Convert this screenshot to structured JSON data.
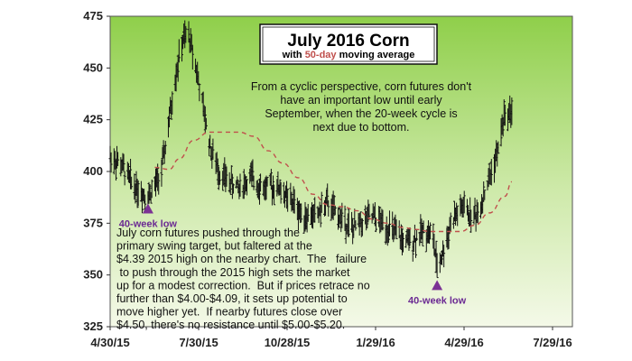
{
  "chart_data": {
    "type": "ohlc",
    "title": "July 2016 Corn",
    "subtitle_prefix": "with ",
    "subtitle_highlight": "50-day",
    "subtitle_suffix": " moving average",
    "y_ticks": [
      "475",
      "450",
      "425",
      "400",
      "375",
      "350",
      "325"
    ],
    "x_ticks": [
      "4/30/15",
      "7/30/15",
      "10/28/15",
      "1/29/16",
      "4/29/16",
      "7/29/16"
    ],
    "ylim": [
      325,
      475
    ],
    "price_path": [
      [
        "2015-04-30",
        407
      ],
      [
        "2015-05-10",
        404
      ],
      [
        "2015-05-22",
        395
      ],
      [
        "2015-06-01",
        390
      ],
      [
        "2015-06-08",
        388
      ],
      [
        "2015-06-15",
        393
      ],
      [
        "2015-06-22",
        400
      ],
      [
        "2015-06-30",
        425
      ],
      [
        "2015-07-07",
        448
      ],
      [
        "2015-07-14",
        463
      ],
      [
        "2015-07-20",
        466
      ],
      [
        "2015-07-27",
        452
      ],
      [
        "2015-08-04",
        430
      ],
      [
        "2015-08-12",
        410
      ],
      [
        "2015-08-20",
        400
      ],
      [
        "2015-08-31",
        395
      ],
      [
        "2015-09-10",
        392
      ],
      [
        "2015-09-22",
        397
      ],
      [
        "2015-10-05",
        392
      ],
      [
        "2015-10-15",
        393
      ],
      [
        "2015-10-22",
        392
      ],
      [
        "2015-10-29",
        387
      ],
      [
        "2015-11-05",
        385
      ],
      [
        "2015-11-12",
        380
      ],
      [
        "2015-11-20",
        378
      ],
      [
        "2015-12-01",
        380
      ],
      [
        "2015-12-10",
        385
      ],
      [
        "2015-12-18",
        380
      ],
      [
        "2015-12-28",
        376
      ],
      [
        "2016-01-05",
        372
      ],
      [
        "2016-01-15",
        376
      ],
      [
        "2016-01-25",
        378
      ],
      [
        "2016-02-05",
        375
      ],
      [
        "2016-02-18",
        370
      ],
      [
        "2016-02-29",
        365
      ],
      [
        "2016-03-10",
        368
      ],
      [
        "2016-03-20",
        372
      ],
      [
        "2016-03-28",
        368
      ],
      [
        "2016-04-01",
        354
      ],
      [
        "2016-04-08",
        362
      ],
      [
        "2016-04-15",
        375
      ],
      [
        "2016-04-22",
        380
      ],
      [
        "2016-04-29",
        383
      ],
      [
        "2016-05-06",
        378
      ],
      [
        "2016-05-13",
        380
      ],
      [
        "2016-05-20",
        390
      ],
      [
        "2016-05-27",
        400
      ],
      [
        "2016-06-03",
        410
      ],
      [
        "2016-06-08",
        425
      ],
      [
        "2016-06-13",
        428
      ],
      [
        "2016-06-17",
        430
      ]
    ],
    "moving_average": [
      [
        "2015-06-15",
        402
      ],
      [
        "2015-06-30",
        401
      ],
      [
        "2015-07-10",
        406
      ],
      [
        "2015-07-25",
        415
      ],
      [
        "2015-08-10",
        419
      ],
      [
        "2015-08-25",
        419
      ],
      [
        "2015-09-10",
        419
      ],
      [
        "2015-09-25",
        417
      ],
      [
        "2015-10-10",
        410
      ],
      [
        "2015-10-25",
        404
      ],
      [
        "2015-11-10",
        397
      ],
      [
        "2015-11-25",
        389
      ],
      [
        "2015-12-10",
        384
      ],
      [
        "2015-12-25",
        383
      ],
      [
        "2016-01-10",
        381
      ],
      [
        "2016-01-25",
        377
      ],
      [
        "2016-02-10",
        375
      ],
      [
        "2016-02-25",
        373
      ],
      [
        "2016-03-10",
        372
      ],
      [
        "2016-03-25",
        371
      ],
      [
        "2016-04-10",
        371
      ],
      [
        "2016-04-25",
        371
      ],
      [
        "2016-05-10",
        374
      ],
      [
        "2016-05-25",
        380
      ],
      [
        "2016-06-10",
        388
      ],
      [
        "2016-06-17",
        395
      ]
    ],
    "lows": [
      {
        "date": "2015-06-08",
        "price": 388,
        "label": "40-week low"
      },
      {
        "date": "2016-04-01",
        "price": 351,
        "label": "40-week low"
      }
    ],
    "annotation_top": [
      "From a cyclic perspective, corn futures don't",
      "have an important low until early",
      "September, when the 20-week cycle is",
      "next due to bottom."
    ],
    "annotation_bottom": [
      "July corn futures pushed through the",
      "primary swing target, but faltered at the",
      "$4.39 2015 high on the nearby chart.  The   failure",
      " to push through the 2015 high sets the market",
      "up for a modest correction.  But if prices retrace no",
      "further than $4.00-$4.09, it sets up potential to",
      "move higher yet.  If nearby futures close over",
      "$4.50, there's no resistance until $5.00-$5.20."
    ],
    "colors": {
      "background_outer": "#ffffff",
      "plot_light": "#f4f9e8",
      "plot_dark": "#8fcf4a",
      "bars": "#111111",
      "moving_average": "#c0504d",
      "low_marker": "#7b3294"
    }
  }
}
